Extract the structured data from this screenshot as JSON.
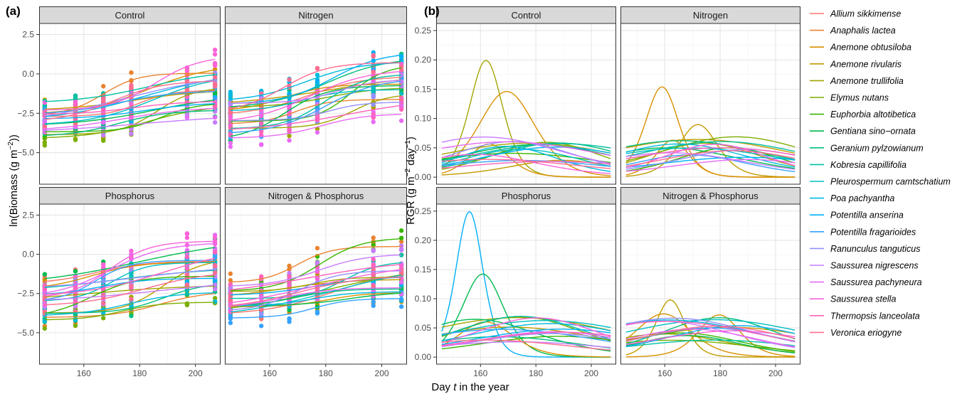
{
  "figure": {
    "panel_a_tag": "(a)",
    "panel_b_tag": "(b)",
    "xlabel_pre": "Day ",
    "xlabel_var": "t",
    "xlabel_post": " in the year",
    "a_ylabel_main": "ln(Biomass (g m",
    "a_ylabel_sup": "−2",
    "a_ylabel_end": "))",
    "b_ylabel_main": "RGR (g m",
    "b_ylabel_sup1": "−2",
    "b_ylabel_mid": " day",
    "b_ylabel_sup2": "−1",
    "b_ylabel_end": ")"
  },
  "chart_data": [
    {
      "type": "scatter",
      "panel": "(a)",
      "facets": [
        "Control",
        "Nitrogen",
        "Phosphorus",
        "Nitrogen & Phosphorus"
      ],
      "xlim": [
        144,
        209
      ],
      "ylim": [
        -7.0,
        3.2
      ],
      "x_ticks": [
        160,
        180,
        200
      ],
      "y_ticks": [
        2.5,
        0.0,
        -2.5,
        -5.0
      ],
      "y_tick_labels": [
        "2.5",
        "0.0",
        "−2.5",
        "−5.0"
      ],
      "sample_days": [
        146,
        157,
        167,
        177,
        197,
        207
      ],
      "grid": true,
      "series_model": "logistic fits of ln(biomass) for 20 species per treatment"
    },
    {
      "type": "line",
      "panel": "(b)",
      "facets": [
        "Control",
        "Nitrogen",
        "Phosphorus",
        "Nitrogen & Phosphorus"
      ],
      "xlim": [
        144,
        209
      ],
      "ylim": [
        -0.012,
        0.262
      ],
      "x_ticks": [
        160,
        180,
        200
      ],
      "y_ticks": [
        0.0,
        0.05,
        0.1,
        0.15,
        0.2,
        0.25
      ],
      "y_tick_labels": [
        "0.00",
        "0.05",
        "0.10",
        "0.15",
        "0.20",
        "0.25"
      ],
      "grid": true,
      "peak_examples": [
        {
          "facet": "Control",
          "day": 162,
          "rgr": 0.199
        },
        {
          "facet": "Nitrogen",
          "day": 159,
          "rgr": 0.154
        },
        {
          "facet": "Phosphorus",
          "day": 156,
          "rgr": 0.249
        },
        {
          "facet": "Nitrogen & Phosphorus",
          "day": 162,
          "rgr": 0.098
        }
      ]
    }
  ],
  "legend": {
    "placement": "right",
    "items": [
      {
        "name": "Allium sikkimense",
        "color": "#F8766D"
      },
      {
        "name": "Anaphalis lactea",
        "color": "#EA8331"
      },
      {
        "name": "Anemone obtusiloba",
        "color": "#D89000"
      },
      {
        "name": "Anemone rivularis",
        "color": "#C09B00"
      },
      {
        "name": "Anemone trullifolia",
        "color": "#A3A500"
      },
      {
        "name": "Elymus nutans",
        "color": "#7CAE00"
      },
      {
        "name": "Euphorbia altotibetica",
        "color": "#39B600"
      },
      {
        "name": "Gentiana sino−ornata",
        "color": "#00BB4E"
      },
      {
        "name": "Geranium pylzowianum",
        "color": "#00BF7D"
      },
      {
        "name": "Kobresia capillifolia",
        "color": "#00C1A3"
      },
      {
        "name": "Pleurospermum camtschatium",
        "color": "#00BFC4"
      },
      {
        "name": "Poa pachyantha",
        "color": "#00BAE0"
      },
      {
        "name": "Potentilla anserina",
        "color": "#00B0F6"
      },
      {
        "name": "Potentilla fragarioides",
        "color": "#35A2FF"
      },
      {
        "name": "Ranunculus tanguticus",
        "color": "#9590FF"
      },
      {
        "name": "Saussurea nigrescens",
        "color": "#C77CFF"
      },
      {
        "name": "Saussurea pachyneura",
        "color": "#E76BF3"
      },
      {
        "name": "Saussurea stella",
        "color": "#FA62DB"
      },
      {
        "name": "Thermopsis lanceolata",
        "color": "#FF62BC"
      },
      {
        "name": "Veronica eriogyne",
        "color": "#FF6C91"
      }
    ]
  }
}
